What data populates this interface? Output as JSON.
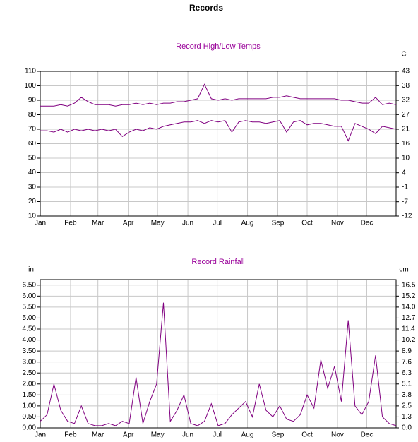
{
  "title": "Records",
  "chart_data": [
    {
      "type": "line",
      "title": "Record High/Low Temps",
      "y2label": "C",
      "x": [
        1,
        8,
        15,
        22,
        29,
        36,
        43,
        50,
        57,
        64,
        71,
        78,
        85,
        92,
        99,
        106,
        113,
        120,
        127,
        134,
        141,
        148,
        155,
        162,
        169,
        176,
        183,
        190,
        197,
        204,
        211,
        218,
        225,
        232,
        239,
        246,
        253,
        260,
        267,
        274,
        281,
        288,
        295,
        302,
        309,
        316,
        323,
        330,
        337,
        344,
        351,
        358,
        365
      ],
      "xlim": [
        1,
        365
      ],
      "xticks": [
        {
          "value": 1,
          "label": "Jan"
        },
        {
          "value": 32,
          "label": "Feb"
        },
        {
          "value": 60,
          "label": "Mar"
        },
        {
          "value": 91,
          "label": "Apr"
        },
        {
          "value": 121,
          "label": "May"
        },
        {
          "value": 152,
          "label": "Jun"
        },
        {
          "value": 182,
          "label": "Jul"
        },
        {
          "value": 213,
          "label": "Aug"
        },
        {
          "value": 244,
          "label": "Sep"
        },
        {
          "value": 274,
          "label": "Oct"
        },
        {
          "value": 305,
          "label": "Nov"
        },
        {
          "value": 335,
          "label": "Dec"
        }
      ],
      "ylim": [
        10,
        110
      ],
      "yticks": [
        10,
        20,
        30,
        40,
        50,
        60,
        70,
        80,
        90,
        100,
        110
      ],
      "y2lim": [
        -12.2,
        43.3
      ],
      "y2ticks": [
        {
          "value": -12.2,
          "label": "-12"
        },
        {
          "value": -6.7,
          "label": "-7"
        },
        {
          "value": -1.1,
          "label": "-1"
        },
        {
          "value": 4.4,
          "label": "4"
        },
        {
          "value": 10,
          "label": "10"
        },
        {
          "value": 15.6,
          "label": "16"
        },
        {
          "value": 21.1,
          "label": "21"
        },
        {
          "value": 26.7,
          "label": "27"
        },
        {
          "value": 32.2,
          "label": "32"
        },
        {
          "value": 37.8,
          "label": "38"
        },
        {
          "value": 43.3,
          "label": "43"
        }
      ],
      "grid": true,
      "series": [
        {
          "color": "#800080",
          "values": [
            86,
            86,
            86,
            87,
            86,
            88,
            92,
            89,
            87,
            87,
            87,
            86,
            87,
            87,
            88,
            87,
            88,
            87,
            88,
            88,
            89,
            89,
            90,
            91,
            101,
            91,
            90,
            91,
            90,
            91,
            91,
            91,
            91,
            91,
            92,
            92,
            93,
            92,
            91,
            91,
            91,
            91,
            91,
            91,
            90,
            90,
            89,
            88,
            88,
            92,
            87,
            88,
            87
          ]
        },
        {
          "color": "#800080",
          "values": [
            69,
            69,
            68,
            70,
            68,
            70,
            69,
            70,
            69,
            70,
            69,
            70,
            65,
            68,
            70,
            69,
            71,
            70,
            72,
            73,
            74,
            75,
            75,
            76,
            74,
            76,
            75,
            76,
            68,
            75,
            76,
            75,
            75,
            74,
            75,
            76,
            68,
            75,
            76,
            73,
            74,
            74,
            73,
            72,
            72,
            62,
            74,
            72,
            70,
            67,
            72,
            71,
            70
          ]
        }
      ]
    },
    {
      "type": "line",
      "title": "Record Rainfall",
      "ylabel": "in",
      "y2label": "cm",
      "x": [
        1,
        8,
        15,
        22,
        29,
        36,
        43,
        50,
        57,
        64,
        71,
        78,
        85,
        92,
        99,
        106,
        113,
        120,
        127,
        134,
        141,
        148,
        155,
        162,
        169,
        176,
        183,
        190,
        197,
        204,
        211,
        218,
        225,
        232,
        239,
        246,
        253,
        260,
        267,
        274,
        281,
        288,
        295,
        302,
        309,
        316,
        323,
        330,
        337,
        344,
        351,
        358,
        365
      ],
      "xlim": [
        1,
        365
      ],
      "xticks": [
        {
          "value": 1,
          "label": "Jan"
        },
        {
          "value": 32,
          "label": "Feb"
        },
        {
          "value": 60,
          "label": "Mar"
        },
        {
          "value": 91,
          "label": "Apr"
        },
        {
          "value": 121,
          "label": "May"
        },
        {
          "value": 152,
          "label": "Jun"
        },
        {
          "value": 182,
          "label": "Jul"
        },
        {
          "value": 213,
          "label": "Aug"
        },
        {
          "value": 244,
          "label": "Sep"
        },
        {
          "value": 274,
          "label": "Oct"
        },
        {
          "value": 305,
          "label": "Nov"
        },
        {
          "value": 335,
          "label": "Dec"
        }
      ],
      "ylim": [
        0,
        6.75
      ],
      "yticks": [
        {
          "value": 0,
          "label": "0.00"
        },
        {
          "value": 0.5,
          "label": "0.50"
        },
        {
          "value": 1,
          "label": "1.00"
        },
        {
          "value": 1.5,
          "label": "1.50"
        },
        {
          "value": 2,
          "label": "2.00"
        },
        {
          "value": 2.5,
          "label": "2.50"
        },
        {
          "value": 3,
          "label": "3.00"
        },
        {
          "value": 3.5,
          "label": "3.50"
        },
        {
          "value": 4,
          "label": "4.00"
        },
        {
          "value": 4.5,
          "label": "4.50"
        },
        {
          "value": 5,
          "label": "5.00"
        },
        {
          "value": 5.5,
          "label": "5.50"
        },
        {
          "value": 6,
          "label": "6.00"
        },
        {
          "value": 6.5,
          "label": "6.50"
        }
      ],
      "y2lim": [
        0,
        17.145
      ],
      "y2ticks": [
        {
          "value": 0,
          "label": "0.0"
        },
        {
          "value": 1.27,
          "label": "1.3"
        },
        {
          "value": 2.54,
          "label": "2.5"
        },
        {
          "value": 3.81,
          "label": "3.8"
        },
        {
          "value": 5.08,
          "label": "5.1"
        },
        {
          "value": 6.35,
          "label": "6.3"
        },
        {
          "value": 7.62,
          "label": "7.6"
        },
        {
          "value": 8.89,
          "label": "8.9"
        },
        {
          "value": 10.16,
          "label": "10.2"
        },
        {
          "value": 11.43,
          "label": "11.4"
        },
        {
          "value": 12.7,
          "label": "12.7"
        },
        {
          "value": 13.97,
          "label": "14.0"
        },
        {
          "value": 15.24,
          "label": "15.2"
        },
        {
          "value": 16.51,
          "label": "16.5"
        }
      ],
      "grid": true,
      "series": [
        {
          "color": "#800080",
          "values": [
            0.3,
            0.6,
            2.0,
            0.8,
            0.3,
            0.2,
            1.0,
            0.2,
            0.1,
            0.1,
            0.2,
            0.1,
            0.3,
            0.2,
            2.3,
            0.2,
            1.2,
            2.0,
            5.7,
            0.3,
            0.8,
            1.5,
            0.2,
            0.1,
            0.3,
            1.1,
            0.1,
            0.2,
            0.6,
            0.9,
            1.2,
            0.5,
            2.0,
            0.8,
            0.5,
            1.0,
            0.4,
            0.3,
            0.6,
            1.5,
            0.9,
            3.1,
            1.8,
            2.8,
            1.2,
            4.9,
            1.0,
            0.6,
            1.2,
            3.3,
            0.5,
            0.2,
            0.1
          ]
        }
      ]
    }
  ]
}
